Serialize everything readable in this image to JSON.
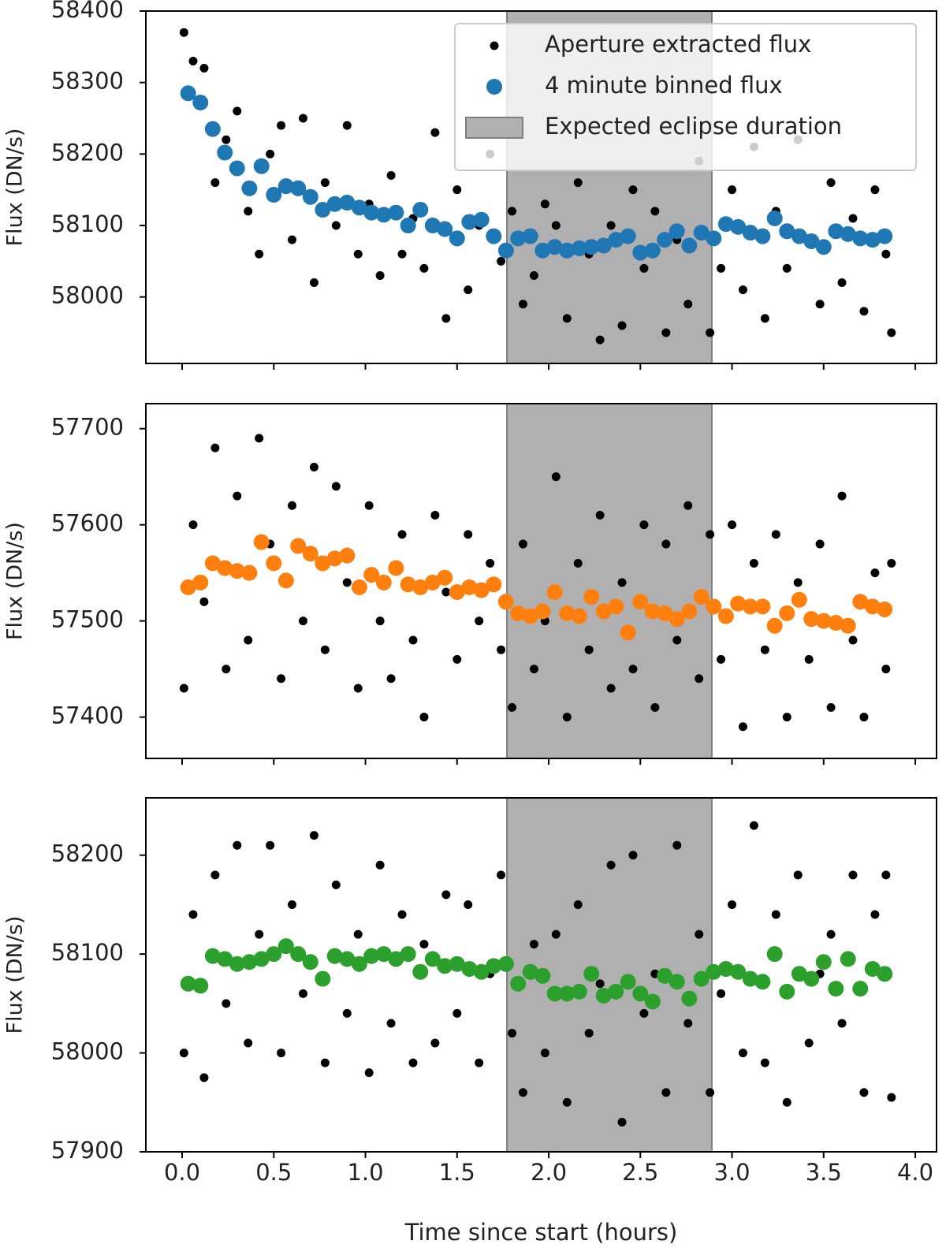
{
  "chart_data": [
    {
      "type": "scatter",
      "ylabel": "Flux (DN/s)",
      "xlim": [
        -0.198,
        4.116
      ],
      "xticks": [
        0,
        0.5,
        1,
        1.5,
        2,
        2.5,
        3,
        3.5,
        4
      ],
      "ylim": [
        57907,
        58400
      ],
      "yticks": [
        58000,
        58100,
        58200,
        58300,
        58400
      ],
      "span": {
        "x": [
          1.772,
          2.89
        ],
        "label": "Expected eclipse duration",
        "color": "#b0b0b0"
      },
      "legend": "upper right",
      "series": [
        {
          "name": "Aperture extracted flux",
          "color": "#000000",
          "size": "small",
          "x": [
            0.01,
            0.06,
            0.12,
            0.18,
            0.24,
            0.3,
            0.36,
            0.42,
            0.48,
            0.54,
            0.6,
            0.66,
            0.72,
            0.78,
            0.84,
            0.9,
            0.96,
            1.02,
            1.08,
            1.14,
            1.2,
            1.26,
            1.32,
            1.38,
            1.44,
            1.5,
            1.56,
            1.62,
            1.68,
            1.74,
            1.8,
            1.86,
            1.92,
            1.98,
            2.04,
            2.1,
            2.16,
            2.22,
            2.28,
            2.34,
            2.4,
            2.46,
            2.52,
            2.58,
            2.64,
            2.7,
            2.76,
            2.82,
            2.88,
            2.94,
            3.0,
            3.06,
            3.12,
            3.18,
            3.24,
            3.3,
            3.36,
            3.42,
            3.48,
            3.54,
            3.6,
            3.66,
            3.72,
            3.78,
            3.84,
            3.87
          ],
          "values": [
            58370,
            58330,
            58320,
            58160,
            58220,
            58260,
            58120,
            58060,
            58200,
            58240,
            58080,
            58250,
            58020,
            58160,
            58100,
            58240,
            58060,
            58130,
            58030,
            58170,
            58060,
            58110,
            58040,
            58230,
            57970,
            58150,
            58010,
            58100,
            58200,
            58050,
            58120,
            57990,
            58030,
            58130,
            58100,
            57970,
            58160,
            58060,
            57940,
            58100,
            57960,
            58150,
            58040,
            58120,
            57950,
            58080,
            57990,
            58190,
            57950,
            58040,
            58150,
            58010,
            58210,
            57970,
            58120,
            58040,
            58220,
            58080,
            57990,
            58160,
            58020,
            58110,
            57980,
            58150,
            58060,
            57950
          ]
        },
        {
          "name": "4 minute binned flux",
          "color": "#1f77b4",
          "size": "large",
          "x": [
            0.033,
            0.1,
            0.167,
            0.233,
            0.3,
            0.367,
            0.433,
            0.5,
            0.567,
            0.633,
            0.7,
            0.767,
            0.833,
            0.9,
            0.967,
            1.033,
            1.1,
            1.167,
            1.233,
            1.3,
            1.367,
            1.433,
            1.5,
            1.567,
            1.633,
            1.7,
            1.767,
            1.833,
            1.9,
            1.967,
            2.033,
            2.1,
            2.167,
            2.233,
            2.3,
            2.367,
            2.433,
            2.5,
            2.567,
            2.633,
            2.7,
            2.767,
            2.833,
            2.9,
            2.967,
            3.033,
            3.1,
            3.167,
            3.233,
            3.3,
            3.367,
            3.433,
            3.5,
            3.567,
            3.633,
            3.7,
            3.767,
            3.833
          ],
          "values": [
            58285,
            58272,
            58235,
            58202,
            58180,
            58152,
            58183,
            58143,
            58155,
            58152,
            58140,
            58122,
            58130,
            58132,
            58125,
            58118,
            58115,
            58118,
            58100,
            58122,
            58100,
            58095,
            58082,
            58105,
            58108,
            58085,
            58065,
            58082,
            58085,
            58065,
            58070,
            58065,
            58068,
            58070,
            58072,
            58080,
            58085,
            58062,
            58065,
            58080,
            58092,
            58072,
            58090,
            58082,
            58102,
            58098,
            58090,
            58085,
            58110,
            58092,
            58085,
            58078,
            58070,
            58092,
            58088,
            58082,
            58080,
            58085
          ]
        }
      ]
    },
    {
      "type": "scatter",
      "ylabel": "Flux (DN/s)",
      "xlim": [
        -0.198,
        4.116
      ],
      "xticks": [
        0,
        0.5,
        1,
        1.5,
        2,
        2.5,
        3,
        3.5,
        4
      ],
      "ylim": [
        57357,
        57726
      ],
      "yticks": [
        57400,
        57500,
        57600,
        57700
      ],
      "span": {
        "x": [
          1.772,
          2.89
        ],
        "color": "#b0b0b0"
      },
      "series": [
        {
          "color": "#000000",
          "size": "small",
          "x": [
            0.01,
            0.06,
            0.12,
            0.18,
            0.24,
            0.3,
            0.36,
            0.42,
            0.48,
            0.54,
            0.6,
            0.66,
            0.72,
            0.78,
            0.84,
            0.9,
            0.96,
            1.02,
            1.08,
            1.14,
            1.2,
            1.26,
            1.32,
            1.38,
            1.44,
            1.5,
            1.56,
            1.62,
            1.68,
            1.74,
            1.8,
            1.86,
            1.92,
            1.98,
            2.04,
            2.1,
            2.16,
            2.22,
            2.28,
            2.34,
            2.4,
            2.46,
            2.52,
            2.58,
            2.64,
            2.7,
            2.76,
            2.82,
            2.88,
            2.94,
            3.0,
            3.06,
            3.12,
            3.18,
            3.24,
            3.3,
            3.36,
            3.42,
            3.48,
            3.54,
            3.6,
            3.66,
            3.72,
            3.78,
            3.84,
            3.87
          ],
          "values": [
            57430,
            57600,
            57520,
            57680,
            57450,
            57630,
            57480,
            57690,
            57580,
            57440,
            57620,
            57500,
            57660,
            57470,
            57640,
            57540,
            57430,
            57620,
            57500,
            57440,
            57590,
            57480,
            57400,
            57610,
            57530,
            57460,
            57590,
            57500,
            57560,
            57470,
            57410,
            57580,
            57450,
            57500,
            57650,
            57400,
            57560,
            57470,
            57610,
            57430,
            57540,
            57450,
            57600,
            57410,
            57580,
            57480,
            57620,
            57440,
            57590,
            57460,
            57600,
            57390,
            57560,
            57470,
            57590,
            57400,
            57540,
            57460,
            57580,
            57410,
            57630,
            57480,
            57400,
            57550,
            57450,
            57560
          ]
        },
        {
          "color": "#ff7f0e",
          "size": "large",
          "x": [
            0.033,
            0.1,
            0.167,
            0.233,
            0.3,
            0.367,
            0.433,
            0.5,
            0.567,
            0.633,
            0.7,
            0.767,
            0.833,
            0.9,
            0.967,
            1.033,
            1.1,
            1.167,
            1.233,
            1.3,
            1.367,
            1.433,
            1.5,
            1.567,
            1.633,
            1.7,
            1.767,
            1.833,
            1.9,
            1.967,
            2.033,
            2.1,
            2.167,
            2.233,
            2.3,
            2.367,
            2.433,
            2.5,
            2.567,
            2.633,
            2.7,
            2.767,
            2.833,
            2.9,
            2.967,
            3.033,
            3.1,
            3.167,
            3.233,
            3.3,
            3.367,
            3.433,
            3.5,
            3.567,
            3.633,
            3.7,
            3.767,
            3.833
          ],
          "values": [
            57535,
            57540,
            57560,
            57555,
            57552,
            57550,
            57582,
            57560,
            57542,
            57578,
            57570,
            57560,
            57565,
            57568,
            57535,
            57548,
            57540,
            57555,
            57538,
            57535,
            57540,
            57545,
            57530,
            57535,
            57532,
            57538,
            57520,
            57508,
            57505,
            57510,
            57530,
            57508,
            57505,
            57525,
            57510,
            57515,
            57488,
            57520,
            57510,
            57508,
            57502,
            57510,
            57525,
            57515,
            57505,
            57518,
            57515,
            57515,
            57495,
            57508,
            57522,
            57502,
            57500,
            57498,
            57495,
            57520,
            57515,
            57512
          ]
        }
      ]
    },
    {
      "type": "scatter",
      "ylabel": "Flux (DN/s)",
      "xlabel": "Time since start (hours)",
      "xlim": [
        -0.198,
        4.116
      ],
      "xticks": [
        {
          "value": 0,
          "label": "0.0"
        },
        0.5,
        {
          "value": 1,
          "label": "1.0"
        },
        1.5,
        {
          "value": 2,
          "label": "2.0"
        },
        2.5,
        {
          "value": 3,
          "label": "3.0"
        },
        3.5,
        {
          "value": 4,
          "label": "4.0"
        }
      ],
      "ylim": [
        57900,
        58258
      ],
      "yticks": [
        57900,
        58000,
        58100,
        58200
      ],
      "span": {
        "x": [
          1.772,
          2.89
        ],
        "color": "#b0b0b0"
      },
      "series": [
        {
          "color": "#000000",
          "size": "small",
          "x": [
            0.01,
            0.06,
            0.12,
            0.18,
            0.24,
            0.3,
            0.36,
            0.42,
            0.48,
            0.54,
            0.6,
            0.66,
            0.72,
            0.78,
            0.84,
            0.9,
            0.96,
            1.02,
            1.08,
            1.14,
            1.2,
            1.26,
            1.32,
            1.38,
            1.44,
            1.5,
            1.56,
            1.62,
            1.68,
            1.74,
            1.8,
            1.86,
            1.92,
            1.98,
            2.04,
            2.1,
            2.16,
            2.22,
            2.28,
            2.34,
            2.4,
            2.46,
            2.52,
            2.58,
            2.64,
            2.7,
            2.76,
            2.82,
            2.88,
            2.94,
            3.0,
            3.06,
            3.12,
            3.18,
            3.24,
            3.3,
            3.36,
            3.42,
            3.48,
            3.54,
            3.6,
            3.66,
            3.72,
            3.78,
            3.84,
            3.87
          ],
          "values": [
            58000,
            58140,
            57975,
            58180,
            58050,
            58210,
            58010,
            58120,
            58210,
            58000,
            58150,
            58060,
            58220,
            57990,
            58170,
            58040,
            58120,
            57980,
            58190,
            58030,
            58140,
            57990,
            58110,
            58010,
            58160,
            58040,
            58150,
            57990,
            58080,
            58180,
            58020,
            57960,
            58110,
            58000,
            58120,
            57950,
            58150,
            58020,
            58070,
            58190,
            57930,
            58200,
            58040,
            58080,
            57960,
            58210,
            58030,
            58120,
            57960,
            58060,
            58150,
            58000,
            58230,
            57990,
            58140,
            57950,
            58180,
            58010,
            58080,
            58120,
            58030,
            58180,
            57960,
            58140,
            58180,
            57955
          ]
        },
        {
          "color": "#2ca02c",
          "size": "large",
          "x": [
            0.033,
            0.1,
            0.167,
            0.233,
            0.3,
            0.367,
            0.433,
            0.5,
            0.567,
            0.633,
            0.7,
            0.767,
            0.833,
            0.9,
            0.967,
            1.033,
            1.1,
            1.167,
            1.233,
            1.3,
            1.367,
            1.433,
            1.5,
            1.567,
            1.633,
            1.7,
            1.767,
            1.833,
            1.9,
            1.967,
            2.033,
            2.1,
            2.167,
            2.233,
            2.3,
            2.367,
            2.433,
            2.5,
            2.567,
            2.633,
            2.7,
            2.767,
            2.833,
            2.9,
            2.967,
            3.033,
            3.1,
            3.167,
            3.233,
            3.3,
            3.367,
            3.433,
            3.5,
            3.567,
            3.633,
            3.7,
            3.767,
            3.833
          ],
          "values": [
            58070,
            58068,
            58098,
            58095,
            58090,
            58092,
            58095,
            58100,
            58108,
            58100,
            58092,
            58075,
            58098,
            58095,
            58090,
            58098,
            58100,
            58095,
            58100,
            58082,
            58095,
            58088,
            58090,
            58085,
            58082,
            58088,
            58090,
            58070,
            58082,
            58078,
            58060,
            58060,
            58062,
            58080,
            58058,
            58062,
            58072,
            58060,
            58052,
            58078,
            58072,
            58055,
            58075,
            58082,
            58085,
            58082,
            58075,
            58072,
            58100,
            58062,
            58080,
            58075,
            58092,
            58065,
            58095,
            58065,
            58085,
            58080
          ]
        }
      ]
    }
  ]
}
